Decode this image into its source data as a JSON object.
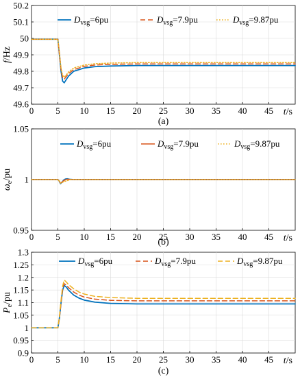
{
  "chart_data": [
    {
      "type": "line",
      "caption": "(a)",
      "ylabel_main": "f",
      "ylabel_unit": "/Hz",
      "xlabel_main": "t",
      "xlabel_unit": "/s",
      "xlim": [
        0,
        50
      ],
      "ylim": [
        49.6,
        50.2
      ],
      "xticks": [
        "0",
        "5",
        "10",
        "15",
        "20",
        "25",
        "30",
        "35",
        "40",
        "45"
      ],
      "yticks": [
        "49.6",
        "49.7",
        "49.8",
        "49.9",
        "50",
        "50.1",
        "50.2"
      ],
      "grid": true,
      "legend": "top",
      "series": [
        {
          "name": "=6pu",
          "legend_main": "D",
          "legend_sub": "vsg",
          "color": "#0072BD",
          "style": "solid",
          "x": [
            0,
            5,
            5.3,
            5.6,
            5.9,
            6.2,
            6.5,
            7,
            8,
            10,
            12,
            15,
            20,
            30,
            40,
            50
          ],
          "y": [
            49.995,
            49.995,
            49.9,
            49.8,
            49.74,
            49.73,
            49.745,
            49.77,
            49.8,
            49.82,
            49.828,
            49.832,
            49.835,
            49.835,
            49.835,
            49.835
          ]
        },
        {
          "name": "=7.9pu",
          "legend_main": "D",
          "legend_sub": "vsg",
          "color": "#D95319",
          "style": "dashed",
          "x": [
            0,
            5,
            5.3,
            5.6,
            5.9,
            6.2,
            6.5,
            7,
            8,
            10,
            12,
            15,
            20,
            30,
            40,
            50
          ],
          "y": [
            49.995,
            49.995,
            49.9,
            49.81,
            49.76,
            49.752,
            49.765,
            49.785,
            49.81,
            49.83,
            49.838,
            49.842,
            49.845,
            49.845,
            49.845,
            49.845
          ]
        },
        {
          "name": "=9.87pu",
          "legend_main": "D",
          "legend_sub": "vsg",
          "color": "#EDB120",
          "style": "dotted",
          "x": [
            0,
            5,
            5.3,
            5.6,
            5.9,
            6.2,
            6.5,
            7,
            8,
            10,
            12,
            15,
            20,
            30,
            40,
            50
          ],
          "y": [
            49.995,
            49.995,
            49.91,
            49.82,
            49.775,
            49.765,
            49.775,
            49.795,
            49.82,
            49.838,
            49.846,
            49.85,
            49.853,
            49.853,
            49.853,
            49.853
          ]
        }
      ]
    },
    {
      "type": "line",
      "caption": "(b)",
      "ylabel_main": "ω",
      "ylabel_sub": "e",
      "ylabel_unit": "/pu",
      "xlabel_main": "t",
      "xlabel_unit": "/s",
      "xlim": [
        0,
        50
      ],
      "ylim": [
        0.95,
        1.05
      ],
      "xticks": [
        "0",
        "5",
        "10",
        "15",
        "20",
        "25",
        "30",
        "35",
        "40",
        "45"
      ],
      "yticks": [
        "0.95",
        "1",
        "1.05"
      ],
      "grid": true,
      "legend": "top",
      "series": [
        {
          "name": "=6pu",
          "legend_main": "D",
          "legend_sub": "vsg",
          "color": "#0072BD",
          "style": "solid",
          "x": [
            0,
            5,
            5.2,
            5.5,
            5.8,
            6.1,
            6.4,
            6.8,
            7.2,
            8,
            50
          ],
          "y": [
            1.0,
            1.0,
            0.999,
            0.996,
            0.9975,
            0.9995,
            1.0005,
            1.0008,
            1.0003,
            1.0,
            1.0
          ]
        },
        {
          "name": "=7.9pu",
          "legend_main": "D",
          "legend_sub": "vsg",
          "color": "#D95319",
          "style": "solid",
          "x": [
            0,
            5,
            5.2,
            5.5,
            5.8,
            6.1,
            6.4,
            6.8,
            7.2,
            8,
            50
          ],
          "y": [
            1.0,
            1.0,
            0.999,
            0.9965,
            0.9975,
            0.999,
            0.9998,
            1.0004,
            1.0002,
            1.0,
            1.0
          ]
        },
        {
          "name": "=9.87pu",
          "legend_main": "D",
          "legend_sub": "vsg",
          "color": "#EDB120",
          "style": "dotted",
          "x": [
            0,
            5,
            5.2,
            5.5,
            5.8,
            6.1,
            6.5,
            6.9,
            7.3,
            7.8,
            8.5,
            50
          ],
          "y": [
            1.0,
            1.0,
            0.999,
            0.9965,
            0.997,
            0.998,
            0.9985,
            0.9992,
            0.9998,
            1.0001,
            1.0,
            1.0
          ]
        }
      ]
    },
    {
      "type": "line",
      "caption": "(c)",
      "ylabel_main": "P",
      "ylabel_sub": "e",
      "ylabel_unit": "/pu",
      "xlabel_main": "t",
      "xlabel_unit": "/s",
      "xlim": [
        0,
        50
      ],
      "ylim": [
        0.9,
        1.3
      ],
      "xticks": [
        "0",
        "5",
        "10",
        "15",
        "20",
        "25",
        "30",
        "35",
        "40",
        "45"
      ],
      "yticks": [
        "0.9",
        "0.95",
        "1",
        "1.05",
        "1.1",
        "1.15",
        "1.2",
        "1.25",
        "1.3"
      ],
      "grid": true,
      "legend": "top",
      "series": [
        {
          "name": "=6pu",
          "legend_main": "D",
          "legend_sub": "vsg",
          "color": "#0072BD",
          "style": "solid",
          "x": [
            0,
            5,
            5.3,
            5.6,
            5.9,
            6.2,
            6.6,
            7,
            8,
            9,
            10,
            12,
            15,
            20,
            30,
            40,
            50
          ],
          "y": [
            1.0,
            1.0,
            1.04,
            1.1,
            1.15,
            1.168,
            1.162,
            1.15,
            1.13,
            1.118,
            1.11,
            1.102,
            1.097,
            1.095,
            1.095,
            1.095,
            1.095
          ]
        },
        {
          "name": "=7.9pu",
          "legend_main": "D",
          "legend_sub": "vsg",
          "color": "#D95319",
          "style": "dashed",
          "x": [
            0,
            5,
            5.3,
            5.6,
            5.9,
            6.2,
            6.6,
            7,
            8,
            9,
            10,
            12,
            15,
            20,
            30,
            40,
            50
          ],
          "y": [
            1.0,
            1.0,
            1.04,
            1.1,
            1.155,
            1.175,
            1.17,
            1.16,
            1.142,
            1.13,
            1.122,
            1.114,
            1.109,
            1.107,
            1.107,
            1.107,
            1.107
          ]
        },
        {
          "name": "=9.87pu",
          "legend_main": "D",
          "legend_sub": "vsg",
          "color": "#EDB120",
          "style": "dashed",
          "x": [
            0,
            5,
            5.3,
            5.6,
            5.9,
            6.2,
            6.6,
            7,
            8,
            9,
            10,
            12,
            15,
            20,
            30,
            40,
            50
          ],
          "y": [
            1.0,
            1.0,
            1.045,
            1.11,
            1.165,
            1.19,
            1.182,
            1.172,
            1.155,
            1.142,
            1.134,
            1.125,
            1.12,
            1.117,
            1.117,
            1.117,
            1.117
          ]
        }
      ]
    }
  ]
}
